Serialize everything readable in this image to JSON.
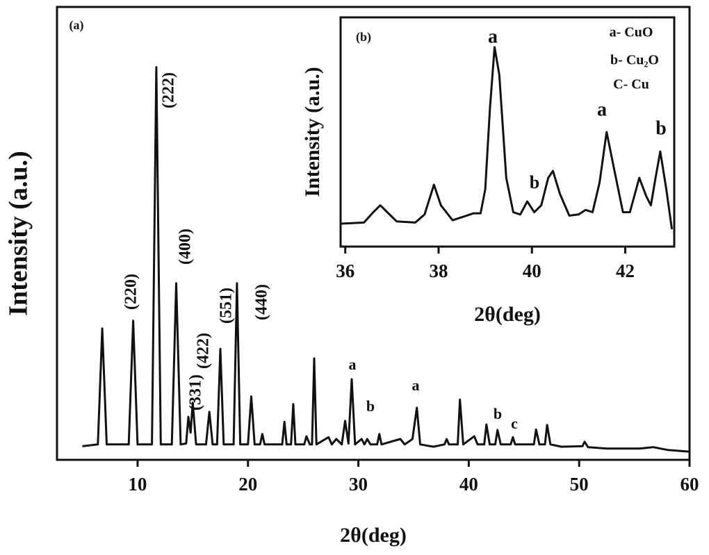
{
  "chart_data": [
    {
      "type": "line",
      "color": "#111111",
      "x_label": "2θ(deg)",
      "y_label": "Intensity (a.u.)",
      "xlim": [
        2.7,
        60
      ],
      "xticks": [
        10,
        20,
        30,
        40,
        50,
        60
      ],
      "ylim": [
        0,
        100
      ],
      "annotations": [
        "(a)",
        "(220)",
        "(222)",
        "(400)",
        "(331)",
        "(422)",
        "(551)",
        "(440)",
        "a",
        "b",
        "a",
        "b",
        "c"
      ],
      "x": [
        5.0,
        6.4,
        6.8,
        7.2,
        9.2,
        9.6,
        10.0,
        11.3,
        11.7,
        12.1,
        13.1,
        13.5,
        13.9,
        14.4,
        14.6,
        14.8,
        15.0,
        15.3,
        16.2,
        16.5,
        16.8,
        17.2,
        17.5,
        17.8,
        18.7,
        19.0,
        19.3,
        20.0,
        20.3,
        20.6,
        21.1,
        21.3,
        21.5,
        23.1,
        23.3,
        23.5,
        23.9,
        24.1,
        24.3,
        25.1,
        25.3,
        25.6,
        25.8,
        26.0,
        26.2,
        27.3,
        27.6,
        28.0,
        28.5,
        28.8,
        29.1,
        29.4,
        29.7,
        30.3,
        30.55,
        30.8,
        31.1,
        31.7,
        31.9,
        32.1,
        33.8,
        34.2,
        34.9,
        35.3,
        35.6,
        36.8,
        37.8,
        38.0,
        38.2,
        39.0,
        39.2,
        39.5,
        40.5,
        40.8,
        41.4,
        41.6,
        41.9,
        42.4,
        42.6,
        42.9,
        43.8,
        44.0,
        44.2,
        45.9,
        46.1,
        46.4,
        46.9,
        47.1,
        47.4,
        48.4,
        50.3,
        50.5,
        50.8,
        52.5,
        55.5,
        56.7,
        58.0,
        60.0
      ],
      "values": [
        3.0,
        3.4,
        29,
        3.4,
        3.4,
        30.7,
        3.4,
        3.4,
        86.7,
        3.4,
        3.4,
        39,
        3.4,
        3.6,
        9.5,
        6,
        12.6,
        3.4,
        3.4,
        10.6,
        3.4,
        3.4,
        24.5,
        3.4,
        3.4,
        39,
        3.4,
        3.4,
        14,
        3.4,
        3.4,
        5.7,
        3.4,
        3.4,
        8.4,
        3.4,
        3.4,
        12.3,
        3.4,
        3.4,
        5.2,
        3.4,
        3.4,
        22.4,
        3.4,
        5,
        3.4,
        4.6,
        3.4,
        8.6,
        3.6,
        17.8,
        3.4,
        4.6,
        3.4,
        4.6,
        3.4,
        3.4,
        5.7,
        3.4,
        4.6,
        3.4,
        4.6,
        11.5,
        3.4,
        2.9,
        3.4,
        4.6,
        3.4,
        3.4,
        13.3,
        3.4,
        5.2,
        3.4,
        3.4,
        7.8,
        3.4,
        3.4,
        6.6,
        3.4,
        3.4,
        5,
        3.4,
        3.4,
        6.7,
        3.4,
        3.4,
        7.7,
        3.4,
        2.9,
        3,
        4,
        2.8,
        2.5,
        2.5,
        2.8,
        2.2,
        1.8
      ]
    },
    {
      "type": "line",
      "color": "#111111",
      "x_label": "2θ(deg)",
      "y_label": "Intensity (a.u.)",
      "xlim": [
        35.9,
        43.05
      ],
      "xticks": [
        36,
        38,
        40,
        42
      ],
      "ylim": [
        0,
        100
      ],
      "annotations": [
        "(b)",
        "a",
        "b",
        "a",
        "b",
        "a- CuO",
        "b- Cu₂O",
        "C- Cu"
      ],
      "x": [
        35.9,
        36.4,
        36.6,
        36.75,
        36.9,
        37.1,
        37.5,
        37.7,
        37.9,
        38.05,
        38.3,
        38.6,
        38.75,
        38.9,
        39.0,
        39.1,
        39.2,
        39.3,
        39.45,
        39.6,
        39.75,
        39.9,
        40.05,
        40.2,
        40.35,
        40.45,
        40.6,
        40.8,
        41.0,
        41.15,
        41.3,
        41.45,
        41.6,
        41.75,
        41.95,
        42.1,
        42.3,
        42.45,
        42.55,
        42.65,
        42.75,
        42.88,
        43.0
      ],
      "values": [
        10,
        10.5,
        15,
        18,
        15,
        11,
        10.5,
        14,
        27,
        18,
        11.5,
        13.5,
        14.5,
        14.5,
        25,
        60,
        87,
        75,
        30,
        15,
        14,
        19.7,
        15,
        18,
        30,
        33,
        23,
        13.5,
        14,
        16,
        15,
        28,
        50,
        35,
        15,
        15,
        30,
        22,
        18,
        30,
        41.5,
        25,
        7.6
      ]
    }
  ]
}
